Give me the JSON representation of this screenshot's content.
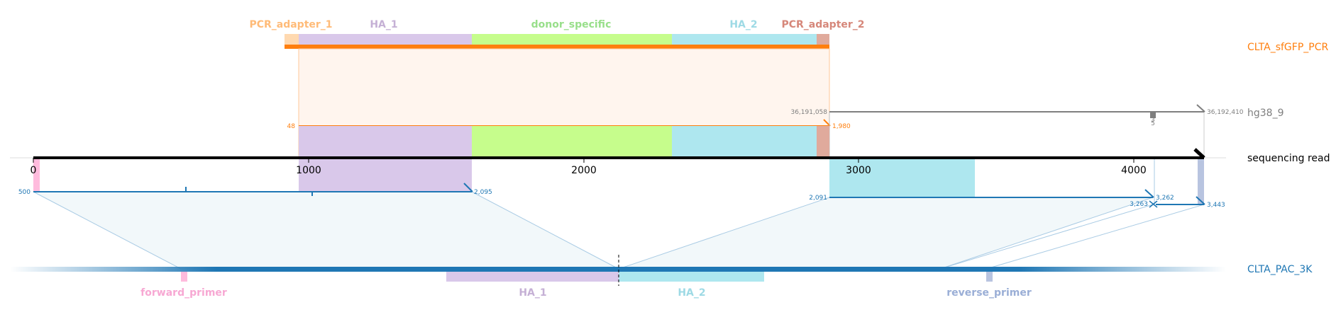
{
  "rows": {
    "pcr": {
      "label": "CLTA_sfGFP_PCR",
      "color": "#ff7f0e"
    },
    "genome": {
      "label": "hg38_9",
      "color": "#7f7f7f"
    },
    "read": {
      "label": "sequencing read",
      "color": "#000000"
    },
    "plasmid": {
      "label": "CLTA_PAC_3K",
      "color": "#1f77b4"
    }
  },
  "top_features": [
    {
      "name": "PCR_adapter_1",
      "color": "#ffbb78"
    },
    {
      "name": "HA_1",
      "color": "#c5b0d5"
    },
    {
      "name": "donor_specific",
      "color": "#98df8a"
    },
    {
      "name": "HA_2",
      "color": "#9edae5"
    },
    {
      "name": "PCR_adapter_2",
      "color": "#d6877a"
    }
  ],
  "bottom_features": [
    {
      "name": "forward_primer",
      "color": "#f7a8d3"
    },
    {
      "name": "HA_1",
      "color": "#c5b0d5"
    },
    {
      "name": "HA_2",
      "color": "#9edae5"
    },
    {
      "name": "reverse_primer",
      "color": "#9aaed6"
    }
  ],
  "read_axis": {
    "ticks": [
      "0",
      "1000",
      "2000",
      "3000",
      "4000"
    ]
  },
  "coords": {
    "pcr_start": "48",
    "pcr_end": "1,980",
    "genome_start": "36,191,058",
    "genome_end": "36,192,410",
    "genome_small": "3\n5",
    "plasmid_a_start": "500",
    "plasmid_a_end": "2,095",
    "plasmid_b_start": "2,091",
    "plasmid_b_end": "3,262",
    "plasmid_c_start": "3,263",
    "plasmid_d_end": "3,443"
  }
}
